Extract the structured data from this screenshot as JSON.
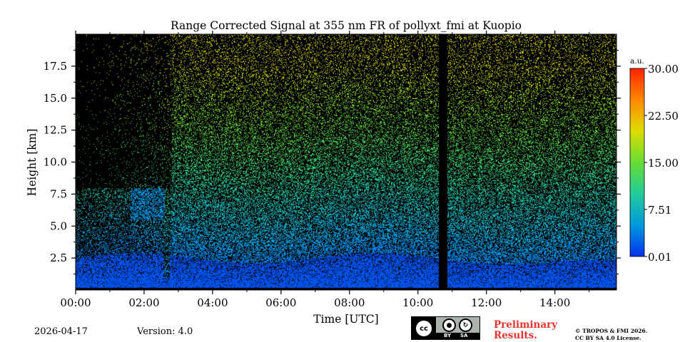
{
  "chart_data": {
    "type": "heatmap",
    "title": "Range Corrected Signal at 355 nm FR of pollyxt_fmi at Kuopio",
    "xlabel": "Time [UTC]",
    "ylabel": "Height [km]",
    "xlim_hours": [
      0,
      15.8
    ],
    "ylim_km": [
      0,
      20
    ],
    "x_ticks": [
      {
        "hour": 0,
        "label": "00:00"
      },
      {
        "hour": 2,
        "label": "02:00"
      },
      {
        "hour": 4,
        "label": "04:00"
      },
      {
        "hour": 6,
        "label": "06:00"
      },
      {
        "hour": 8,
        "label": "08:00"
      },
      {
        "hour": 10,
        "label": "10:00"
      },
      {
        "hour": 12,
        "label": "12:00"
      },
      {
        "hour": 14,
        "label": "14:00"
      }
    ],
    "y_ticks": [
      {
        "km": 2.5,
        "label": "2.5"
      },
      {
        "km": 5.0,
        "label": "5.0"
      },
      {
        "km": 7.5,
        "label": "7.5"
      },
      {
        "km": 10.0,
        "label": "10.0"
      },
      {
        "km": 12.5,
        "label": "12.5"
      },
      {
        "km": 15.0,
        "label": "15.0"
      },
      {
        "km": 17.5,
        "label": "17.5"
      }
    ],
    "colorbar": {
      "unit": "a.u.",
      "min": 0.01,
      "max": 30.0,
      "ticks": [
        {
          "value": 30.0,
          "label": "30.00"
        },
        {
          "value": 22.5,
          "label": "22.50"
        },
        {
          "value": 15.0,
          "label": "15.00"
        },
        {
          "value": 7.51,
          "label": "7.51"
        },
        {
          "value": 0.01,
          "label": "0.01"
        }
      ],
      "colors": [
        "#0033ee",
        "#0099dd",
        "#22cc99",
        "#66dd33",
        "#dddd00",
        "#ff8800",
        "#ff2200"
      ]
    },
    "background_color": "#000000",
    "no_data_gap_hours": [
      10.6,
      10.85
    ],
    "boundary_layer_top_km": 2.5,
    "aerosol_layer": {
      "start_hour": 1.6,
      "end_hour": 2.6,
      "height_km": [
        5.5,
        8.0
      ]
    }
  },
  "footer": {
    "date": "2026-04-17",
    "version": "Version: 4.0",
    "license_badge": {
      "main": "cc",
      "by": "BY",
      "sa": "SA"
    },
    "preliminary": [
      "Preliminary",
      "Results."
    ],
    "copyright": [
      "© TROPOS & FMI 2026.",
      "CC BY SA 4.0 License."
    ]
  }
}
